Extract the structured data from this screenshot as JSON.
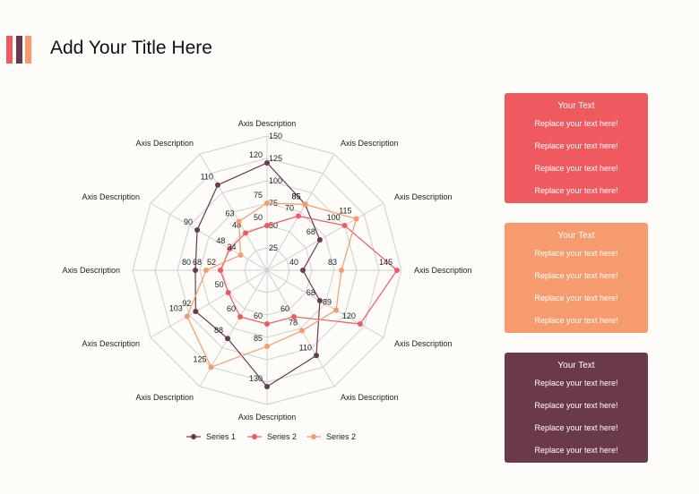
{
  "header": {
    "title": "Add Your Title Here"
  },
  "colors": {
    "accent_bars": [
      "#ef5a5f",
      "#6b3a4a",
      "#f59b6e"
    ],
    "series": [
      "#6b3a4a",
      "#ef5a5f",
      "#f59b6e"
    ],
    "grid": "#cfcfcf"
  },
  "chart_data": {
    "type": "radar",
    "title": "",
    "axes": [
      "Axis Description",
      "Axis Description",
      "Axis Description",
      "Axis Description",
      "Axis Description",
      "Axis Description",
      "Axis Description",
      "Axis Description",
      "Axis Description",
      "Axis Description",
      "Axis Description",
      "Axis Description"
    ],
    "range": [
      0,
      150
    ],
    "ticks": [
      25,
      50,
      75,
      100,
      125,
      150
    ],
    "grid": true,
    "legend_position": "bottom",
    "series": [
      {
        "name": "Series 1",
        "values": [
          120,
          85,
          68,
          40,
          68,
          110,
          130,
          88,
          92,
          80,
          90,
          110
        ]
      },
      {
        "name": "Series 2",
        "values": [
          50,
          70,
          100,
          145,
          120,
          60,
          60,
          60,
          50,
          52,
          48,
          48
        ]
      },
      {
        "name": "Series 2",
        "values": [
          75,
          85,
          115,
          83,
          89,
          78,
          85,
          125,
          103,
          68,
          34,
          63
        ]
      }
    ]
  },
  "cards": [
    {
      "title": "Your Text",
      "lines": [
        "Replace your text here!",
        "Replace your text here!",
        "Replace your text here!",
        "Replace your text here!"
      ],
      "color": "#ef5a5f"
    },
    {
      "title": "Your Text",
      "lines": [
        "Replace your text here!",
        "Replace your text here!",
        "Replace your text here!",
        "Replace your text here!"
      ],
      "color": "#f59b6e"
    },
    {
      "title": "Your Text",
      "lines": [
        "Replace your text here!",
        "Replace your text here!",
        "Replace your text here!",
        "Replace your text here!"
      ],
      "color": "#6b3a4a"
    }
  ]
}
